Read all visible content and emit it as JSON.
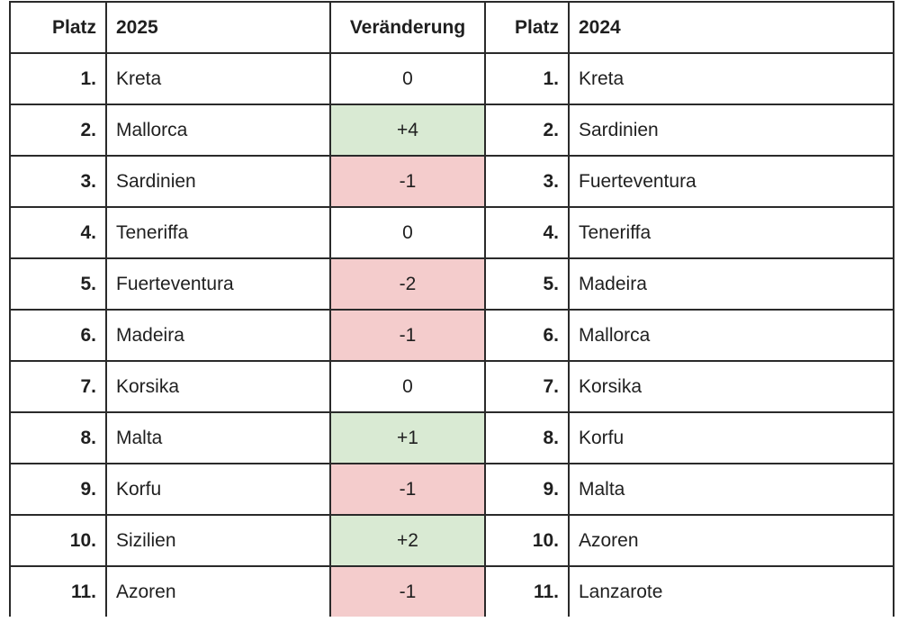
{
  "header": {
    "platz_2025": "Platz",
    "year_2025": "2025",
    "change": "Veränderung",
    "platz_2024": "Platz",
    "year_2024": "2024"
  },
  "rows": [
    {
      "rank_2025": "1.",
      "island_2025": "Kreta",
      "change": "0",
      "trend": "neutral",
      "rank_2024": "1.",
      "island_2024": "Kreta"
    },
    {
      "rank_2025": "2.",
      "island_2025": "Mallorca",
      "change": "+4",
      "trend": "pos",
      "rank_2024": "2.",
      "island_2024": "Sardinien"
    },
    {
      "rank_2025": "3.",
      "island_2025": "Sardinien",
      "change": "-1",
      "trend": "neg",
      "rank_2024": "3.",
      "island_2024": "Fuerteventura"
    },
    {
      "rank_2025": "4.",
      "island_2025": "Teneriffa",
      "change": "0",
      "trend": "neutral",
      "rank_2024": "4.",
      "island_2024": "Teneriffa"
    },
    {
      "rank_2025": "5.",
      "island_2025": "Fuerteventura",
      "change": "-2",
      "trend": "neg",
      "rank_2024": "5.",
      "island_2024": "Madeira"
    },
    {
      "rank_2025": "6.",
      "island_2025": "Madeira",
      "change": "-1",
      "trend": "neg",
      "rank_2024": "6.",
      "island_2024": "Mallorca"
    },
    {
      "rank_2025": "7.",
      "island_2025": "Korsika",
      "change": "0",
      "trend": "neutral",
      "rank_2024": "7.",
      "island_2024": "Korsika"
    },
    {
      "rank_2025": "8.",
      "island_2025": "Malta",
      "change": "+1",
      "trend": "pos",
      "rank_2024": "8.",
      "island_2024": "Korfu"
    },
    {
      "rank_2025": "9.",
      "island_2025": "Korfu",
      "change": "-1",
      "trend": "neg",
      "rank_2024": "9.",
      "island_2024": "Malta"
    },
    {
      "rank_2025": "10.",
      "island_2025": "Sizilien",
      "change": "+2",
      "trend": "pos",
      "rank_2024": "10.",
      "island_2024": "Azoren"
    },
    {
      "rank_2025": "11.",
      "island_2025": "Azoren",
      "change": "-1",
      "trend": "neg",
      "rank_2024": "11.",
      "island_2024": "Lanzarote"
    }
  ],
  "colors": {
    "positive": "#d9ead3",
    "negative": "#f4cccc",
    "neutral": "#ffffff",
    "border": "#2a2a2a"
  }
}
